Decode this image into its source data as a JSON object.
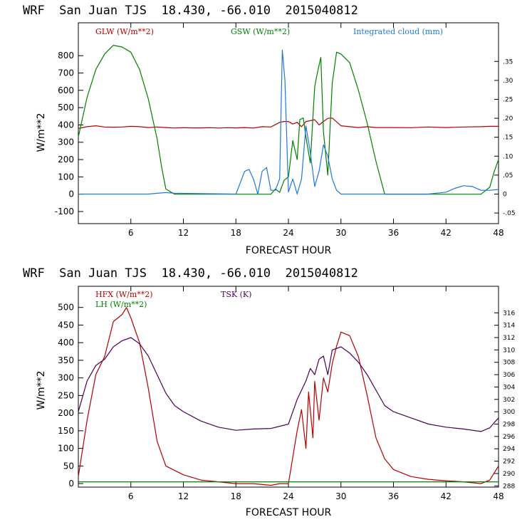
{
  "chart_data": [
    {
      "type": "line",
      "title": "WRF  San Juan TJS  18.430, -66.010  2015040812",
      "xlabel": "FORECAST HOUR",
      "ylabel": "W/m**2",
      "xlim": [
        0,
        48
      ],
      "ylim": [
        -170,
        990
      ],
      "xticks": [
        6,
        12,
        18,
        24,
        30,
        36,
        42,
        48
      ],
      "yticks": [
        -100,
        0,
        100,
        200,
        300,
        400,
        500,
        600,
        700,
        800
      ],
      "right_axis": {
        "ylim": [
          -0.078,
          0.452
        ],
        "ticks": [
          -0.05,
          0,
          0.05,
          0.1,
          0.15,
          0.2,
          0.25,
          0.3,
          0.35
        ],
        "tick_labels": [
          "-.05",
          "0",
          ".05",
          ".10",
          ".15",
          ".20",
          ".25",
          ".30",
          ".35"
        ]
      },
      "series": [
        {
          "name": "GLW (W/m**2)",
          "axis": "left",
          "color": "#b40000",
          "x": [
            0,
            0.5,
            1,
            2,
            3,
            4,
            5,
            6,
            7,
            8,
            9,
            10,
            11,
            12,
            13,
            14,
            15,
            16,
            17,
            18,
            19,
            20,
            21,
            22,
            23,
            23.5,
            24,
            24.5,
            25,
            25.5,
            26,
            27,
            27.5,
            28,
            28.5,
            29,
            30,
            31,
            32,
            33,
            34,
            36,
            38,
            40,
            42,
            44,
            46,
            47,
            48
          ],
          "y": [
            380,
            385,
            390,
            395,
            388,
            387,
            388,
            392,
            390,
            385,
            388,
            385,
            382,
            384,
            383,
            383,
            384,
            382,
            384,
            383,
            385,
            382,
            390,
            388,
            415,
            420,
            420,
            405,
            415,
            390,
            420,
            430,
            400,
            420,
            438,
            440,
            395,
            390,
            385,
            390,
            385,
            385,
            384,
            388,
            385,
            388,
            390,
            392,
            392
          ]
        },
        {
          "name": "GSW (W/m**2)",
          "axis": "left",
          "color": "#008000",
          "x": [
            0,
            1,
            2,
            3,
            4,
            5,
            6,
            7,
            8,
            9,
            9.5,
            10,
            11,
            12,
            22,
            22.5,
            23,
            23.5,
            24,
            24.5,
            25,
            25.3,
            25.7,
            26,
            26.5,
            27,
            27.3,
            27.7,
            28,
            28.5,
            29,
            29.5,
            30,
            31,
            32,
            33,
            34,
            35,
            36,
            44,
            46,
            47,
            47.5,
            48
          ],
          "y": [
            330,
            560,
            720,
            810,
            860,
            850,
            820,
            720,
            550,
            320,
            160,
            30,
            0,
            0,
            0,
            30,
            10,
            80,
            100,
            310,
            200,
            430,
            440,
            330,
            180,
            620,
            700,
            790,
            360,
            110,
            640,
            820,
            810,
            760,
            600,
            410,
            190,
            0,
            0,
            0,
            0,
            40,
            130,
            200
          ]
        },
        {
          "name": "Integrated cloud (mm)",
          "axis": "right",
          "color": "#1e78d8",
          "x": [
            0,
            8,
            9,
            10,
            11,
            18,
            19,
            19.5,
            20,
            20.5,
            21,
            21.5,
            22,
            22.5,
            23,
            23.3,
            23.6,
            24,
            24.5,
            25,
            25.5,
            26,
            26.5,
            27,
            27.5,
            28,
            28.5,
            29,
            29.5,
            30,
            36,
            40,
            42,
            43,
            44,
            45,
            46,
            47,
            48
          ],
          "y": [
            0,
            0,
            0.002,
            0.004,
            0.002,
            0,
            0.06,
            0.065,
            0.04,
            0,
            0.06,
            0.07,
            0.01,
            0.01,
            0.04,
            0.38,
            0.3,
            0.005,
            0.04,
            0,
            0.04,
            0.18,
            0.11,
            0.02,
            0.06,
            0.13,
            0.1,
            0.04,
            0.01,
            0,
            0,
            0,
            0.005,
            0.015,
            0.022,
            0.02,
            0.01,
            0.01,
            0.012
          ]
        }
      ]
    },
    {
      "type": "line",
      "title": "WRF  San Juan TJS  18.430, -66.010  2015040812",
      "xlabel": "FORECAST HOUR",
      "ylabel": "W/m**2",
      "xlim": [
        0,
        48
      ],
      "ylim": [
        -10,
        560
      ],
      "xticks": [
        6,
        12,
        18,
        24,
        30,
        36,
        42,
        48
      ],
      "yticks": [
        0,
        50,
        100,
        150,
        200,
        250,
        300,
        350,
        400,
        450,
        500
      ],
      "right_axis": {
        "ylim": [
          287.8,
          320.3
        ],
        "ticks": [
          288,
          290,
          292,
          294,
          296,
          298,
          300,
          302,
          304,
          306,
          308,
          310,
          312,
          314,
          316
        ],
        "tick_labels": [
          "288",
          "290",
          "292",
          "294",
          "296",
          "298",
          "300",
          "302",
          "304",
          "306",
          "308",
          "310",
          "312",
          "314",
          "316"
        ]
      },
      "series": [
        {
          "name": "HFX (W/m**2)",
          "axis": "left",
          "color": "#b40000",
          "x": [
            0,
            1,
            2,
            3,
            4,
            5,
            5.5,
            6,
            7,
            8,
            9,
            10,
            12,
            14,
            16,
            18,
            20,
            22,
            23,
            24,
            25,
            25.5,
            26,
            26.3,
            26.8,
            27,
            27.5,
            28,
            28.5,
            29,
            29.5,
            30,
            31,
            32,
            33,
            34,
            35,
            36,
            38,
            40,
            42,
            44,
            46,
            47,
            47.5,
            48
          ],
          "y": [
            20,
            180,
            310,
            360,
            460,
            480,
            500,
            470,
            400,
            270,
            120,
            50,
            25,
            10,
            5,
            0,
            0,
            -5,
            0,
            0,
            150,
            210,
            100,
            260,
            130,
            290,
            180,
            300,
            260,
            340,
            390,
            430,
            420,
            360,
            250,
            130,
            70,
            40,
            20,
            12,
            8,
            5,
            0,
            10,
            30,
            50
          ]
        },
        {
          "name": "LH  (W/m**2)",
          "axis": "left",
          "color": "#008000",
          "x": [
            0,
            48
          ],
          "y": [
            5,
            5
          ]
        },
        {
          "name": "TSK (K)",
          "axis": "right",
          "color": "#4b0055",
          "x": [
            0,
            1,
            2,
            3,
            4,
            5,
            6,
            7,
            8,
            9,
            10,
            11,
            12,
            14,
            16,
            18,
            20,
            22,
            24,
            25,
            26,
            26.5,
            27,
            27.5,
            28,
            28.5,
            29,
            30,
            31,
            32,
            33,
            34,
            35,
            36,
            38,
            40,
            42,
            44,
            46,
            47,
            48
          ],
          "y": [
            300,
            305,
            307.5,
            308.5,
            310.5,
            311.5,
            312,
            311,
            309,
            306,
            303,
            301,
            300,
            298.5,
            297.5,
            297,
            297.2,
            297.3,
            298,
            302,
            305,
            307,
            306,
            308.5,
            309,
            306,
            310,
            310.5,
            309.5,
            308,
            306,
            303.5,
            301,
            300,
            299,
            298,
            297.5,
            297.2,
            296.8,
            297.4,
            299
          ]
        }
      ]
    }
  ]
}
